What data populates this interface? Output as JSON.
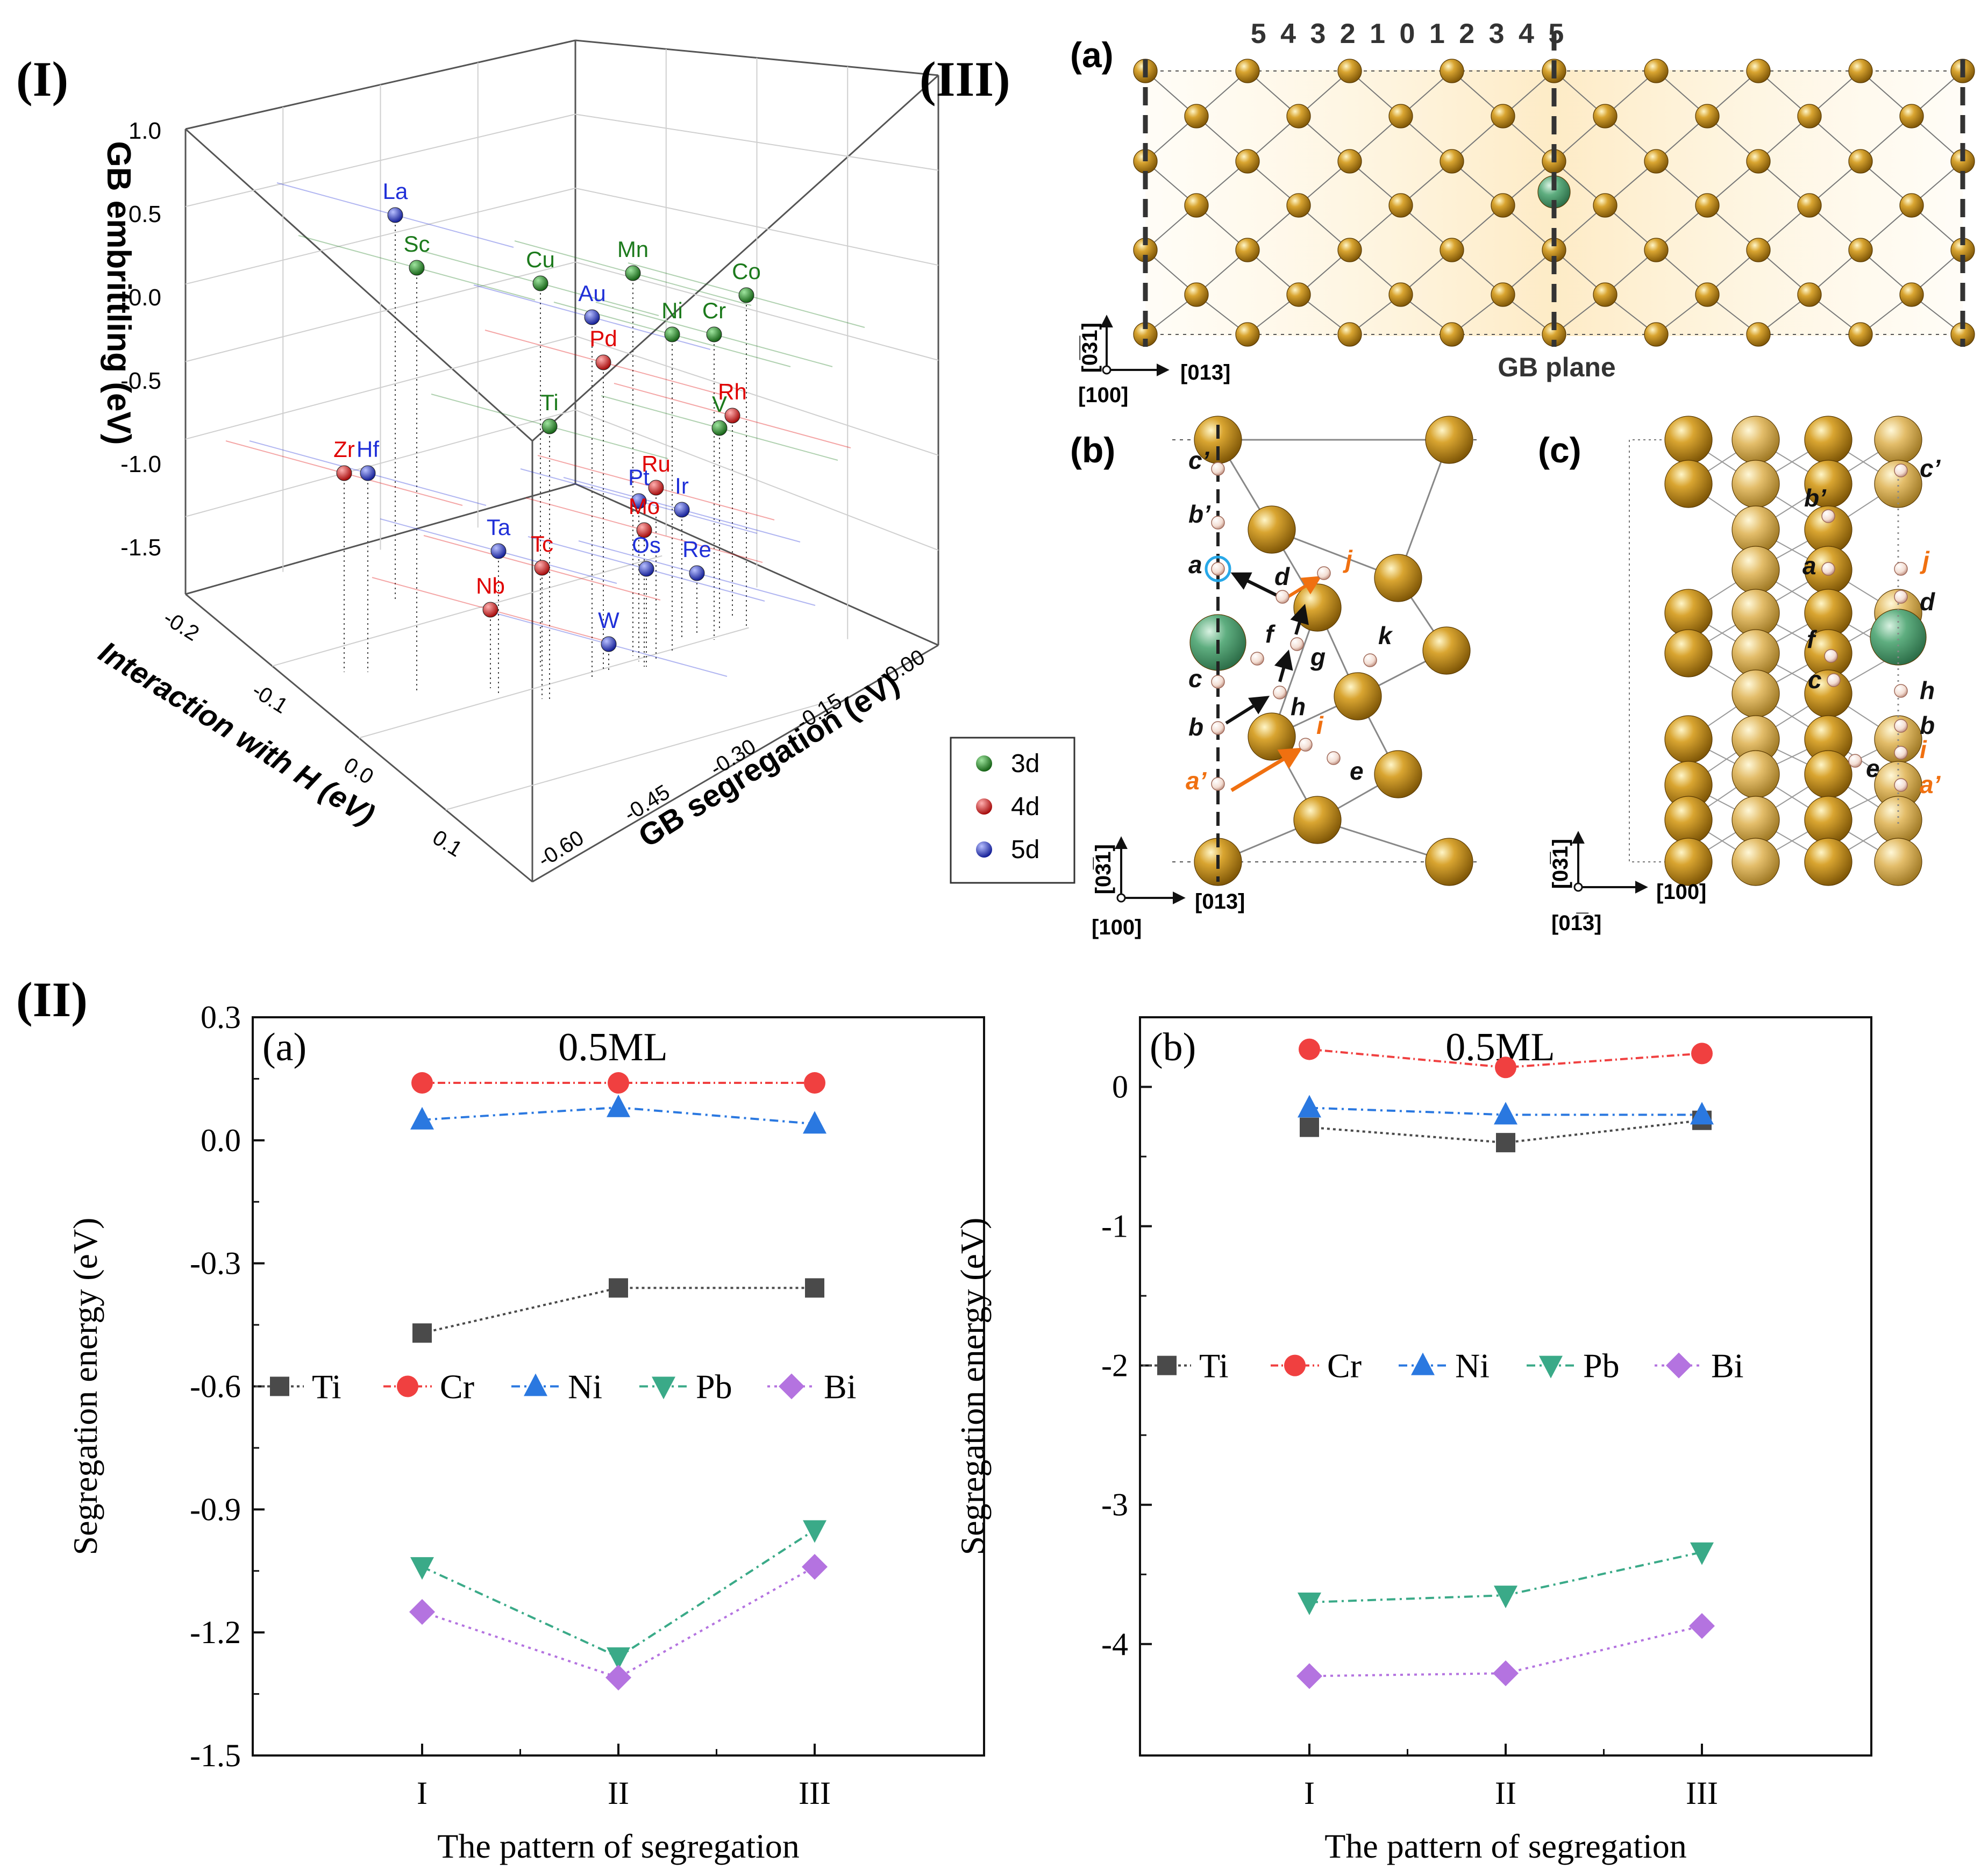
{
  "panel_labels": {
    "p1": "(I)",
    "p2": "(II)",
    "p3": "(III)"
  },
  "colors": {
    "d3": "#1c7a1c",
    "d4": "#e00000",
    "d5": "#1f2fd8",
    "cu": "#b8860b",
    "solute": "#3f8f63",
    "hydrogen": "#f2d6cc",
    "arrow_orange": "#f07010"
  },
  "chart_data": [
    {
      "type": "scatter3d",
      "panel": "(I)",
      "axes": {
        "z": {
          "label": "GB embrittling (eV)",
          "ticks": [
            "1.0",
            "0.5",
            "0.0",
            "-0.5",
            "-1.0",
            "-1.5"
          ],
          "range": [
            -1.6,
            1.0
          ]
        },
        "x": {
          "label": "Interaction with H (eV)",
          "ticks": [
            "-0.2",
            "-0.1",
            "0.0",
            "0.1"
          ],
          "range": [
            -0.2,
            0.12
          ]
        },
        "y": {
          "label": "GB segregation (eV)",
          "ticks": [
            "0.00",
            "-0.15",
            "-0.30",
            "-0.45",
            "-0.60"
          ],
          "range": [
            -0.6,
            0.0
          ]
        }
      },
      "legend": [
        {
          "label": "3d",
          "key": "d3"
        },
        {
          "label": "4d",
          "key": "d4"
        },
        {
          "label": "5d",
          "key": "d5"
        }
      ],
      "points": [
        {
          "el": "La",
          "g": "d5"
        },
        {
          "el": "Sc",
          "g": "d3"
        },
        {
          "el": "Cu",
          "g": "d3"
        },
        {
          "el": "Mn",
          "g": "d3"
        },
        {
          "el": "Co",
          "g": "d3"
        },
        {
          "el": "Au",
          "g": "d5"
        },
        {
          "el": "Ni",
          "g": "d3"
        },
        {
          "el": "Cr",
          "g": "d3"
        },
        {
          "el": "Pd",
          "g": "d4"
        },
        {
          "el": "Rh",
          "g": "d4"
        },
        {
          "el": "Ti",
          "g": "d3"
        },
        {
          "el": "V",
          "g": "d3"
        },
        {
          "el": "Zr",
          "g": "d4"
        },
        {
          "el": "Hf",
          "g": "d5"
        },
        {
          "el": "Ru",
          "g": "d4"
        },
        {
          "el": "Pt",
          "g": "d5"
        },
        {
          "el": "Ir",
          "g": "d5"
        },
        {
          "el": "Mo",
          "g": "d4"
        },
        {
          "el": "Ta",
          "g": "d5"
        },
        {
          "el": "Tc",
          "g": "d4"
        },
        {
          "el": "Os",
          "g": "d5"
        },
        {
          "el": "Re",
          "g": "d5"
        },
        {
          "el": "Nb",
          "g": "d4"
        },
        {
          "el": "W",
          "g": "d5"
        }
      ]
    },
    {
      "type": "line",
      "panel": "(II)(a)",
      "panel_tag": "(a)",
      "title": "0.5ML",
      "categories": [
        "I",
        "II",
        "III"
      ],
      "xlabel": "The pattern of segregation",
      "ylabel": "Segregation energy (eV)",
      "ylim": [
        -1.5,
        0.3
      ],
      "yticks": [
        "0.3",
        "0.0",
        "-0.3",
        "-0.6",
        "-0.9",
        "-1.2",
        "-1.5"
      ],
      "series": [
        {
          "name": "Ti",
          "values": [
            -0.47,
            -0.36,
            -0.36
          ],
          "color": "#4a4a4a",
          "marker": "square"
        },
        {
          "name": "Cr",
          "values": [
            0.14,
            0.14,
            0.14
          ],
          "color": "#f04040",
          "marker": "circle"
        },
        {
          "name": "Ni",
          "values": [
            0.05,
            0.08,
            0.04
          ],
          "color": "#2a78e0",
          "marker": "triangle-up"
        },
        {
          "name": "Pb",
          "values": [
            -1.04,
            -1.26,
            -0.95
          ],
          "color": "#3aaa88",
          "marker": "triangle-down"
        },
        {
          "name": "Bi",
          "values": [
            -1.15,
            -1.31,
            -1.04
          ],
          "color": "#b473e0",
          "marker": "diamond"
        }
      ]
    },
    {
      "type": "line",
      "panel": "(II)(b)",
      "panel_tag": "(b)",
      "title": "0.5ML",
      "categories": [
        "I",
        "II",
        "III"
      ],
      "xlabel": "The pattern of segregation",
      "ylabel": "Segregation energy (eV)",
      "ylim": [
        -4.8,
        0.5
      ],
      "yticks": [
        "0",
        "-1",
        "-2",
        "-3",
        "-4"
      ],
      "series": [
        {
          "name": "Ti",
          "values": [
            -0.29,
            -0.4,
            -0.24
          ],
          "color": "#4a4a4a",
          "marker": "square"
        },
        {
          "name": "Cr",
          "values": [
            0.27,
            0.14,
            0.24
          ],
          "color": "#f04040",
          "marker": "circle"
        },
        {
          "name": "Ni",
          "values": [
            -0.15,
            -0.2,
            -0.2
          ],
          "color": "#2a78e0",
          "marker": "triangle-up"
        },
        {
          "name": "Pb",
          "values": [
            -3.7,
            -3.65,
            -3.34
          ],
          "color": "#3aaa88",
          "marker": "triangle-down"
        },
        {
          "name": "Bi",
          "values": [
            -4.23,
            -4.21,
            -3.87
          ],
          "color": "#b473e0",
          "marker": "diamond"
        }
      ]
    }
  ],
  "structure": {
    "a": {
      "tag": "(a)",
      "layer_labels": "5 4 3 2 1 0 1 2 3 4 5",
      "gb_plane": "GB plane",
      "axis_up": "[0̅3̅1]",
      "axis_right": "[013]",
      "axis_out": "[100]"
    },
    "b": {
      "tag": "(b)",
      "sites": [
        "c’",
        "b’",
        "a",
        "d",
        "j",
        "f",
        "g",
        "k",
        "c",
        "h",
        "b",
        "i",
        "e",
        "a’"
      ],
      "axis_up": "[03̅1]",
      "axis_right": "[013]",
      "axis_out": "[100]"
    },
    "c": {
      "tag": "(c)",
      "sites": [
        "c’",
        "b’",
        "a",
        "j",
        "d",
        "f",
        "c",
        "h",
        "b",
        "i",
        "e",
        "a’"
      ],
      "axis_up": "[03̅1]",
      "axis_right": "[100]",
      "axis_out": "[01̅3]"
    }
  }
}
